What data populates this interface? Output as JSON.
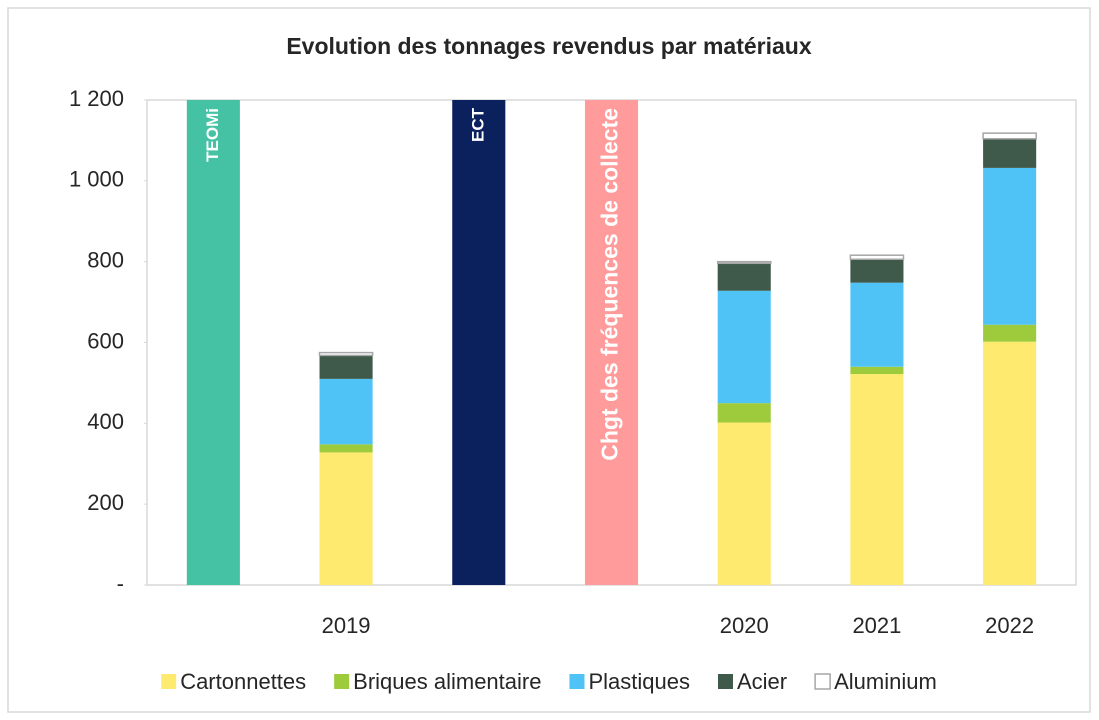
{
  "chart_data": {
    "type": "stacked-bar",
    "title": "Evolution des tonnages revendus par matériaux",
    "categories": [
      null,
      "2019",
      null,
      null,
      "2020",
      "2021",
      "2022"
    ],
    "series": [
      {
        "name": "Cartonnettes",
        "color": "#ffea70",
        "values": [
          null,
          328,
          null,
          null,
          402,
          522,
          602
        ]
      },
      {
        "name": "Briques alimentaire",
        "color": "#9dcb3b",
        "values": [
          null,
          20,
          null,
          null,
          48,
          18,
          42
        ]
      },
      {
        "name": "Plastiques",
        "color": "#50c3f6",
        "values": [
          null,
          162,
          null,
          null,
          278,
          208,
          388
        ]
      },
      {
        "name": "Acier",
        "color": "#3f5a4b",
        "values": [
          null,
          58,
          null,
          null,
          68,
          58,
          72
        ]
      },
      {
        "name": "Aluminium",
        "color": "#ffffff",
        "values": [
          null,
          7,
          null,
          null,
          4,
          10,
          14
        ]
      }
    ],
    "events": [
      {
        "label": "TEOMi",
        "value": 1200,
        "color": "#45c2a3"
      },
      {
        "label": "ECT",
        "value": 1200,
        "color": "#0b215e"
      },
      {
        "label": "Chgt des fréquences de collecte",
        "value": 1200,
        "color": "#ff9b9b"
      }
    ],
    "ylim": [
      0,
      1200
    ],
    "yticks": [
      {
        "value": 0,
        "label": "-"
      },
      200,
      400,
      600,
      800,
      {
        "value": 1000,
        "label": "1 000"
      },
      {
        "value": 1200,
        "label": "1 200"
      }
    ],
    "grid": false,
    "legend": "bottom"
  }
}
